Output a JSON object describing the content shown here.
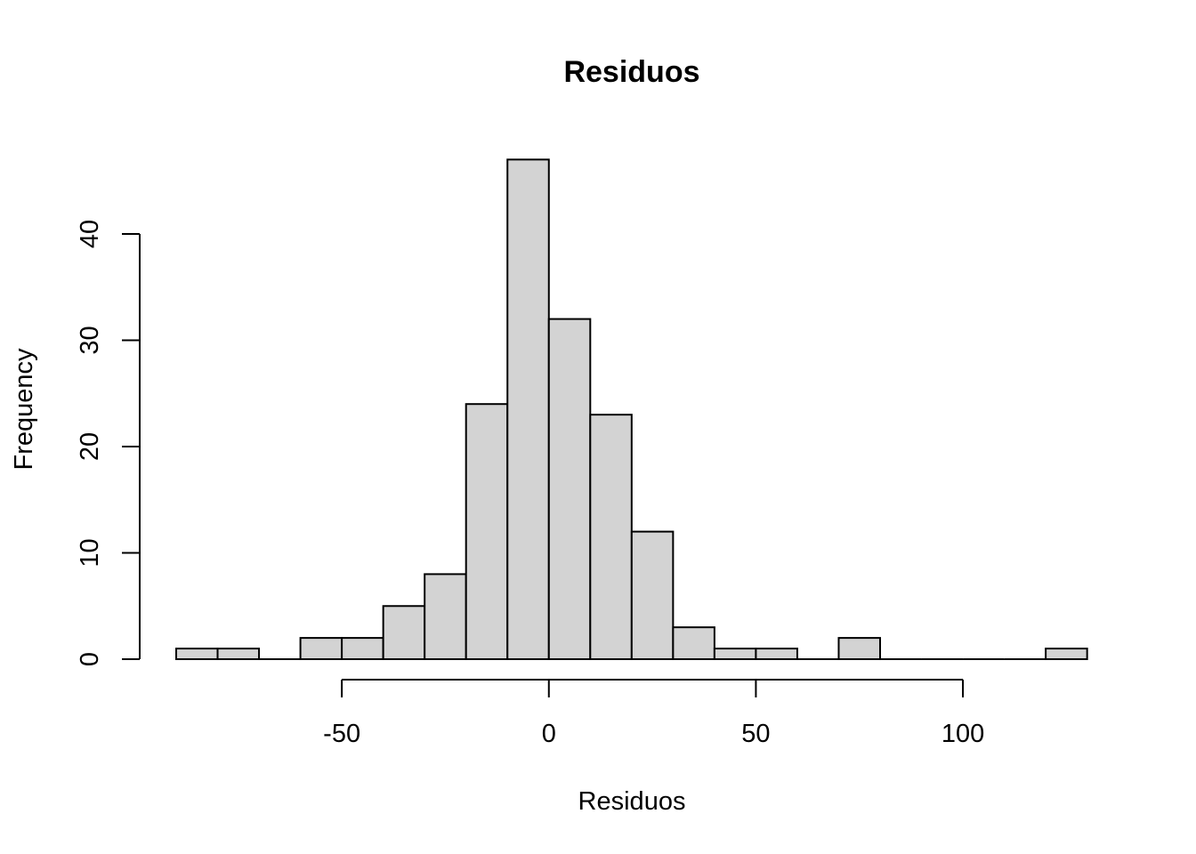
{
  "chart_data": {
    "type": "bar",
    "title": "Residuos",
    "xlabel": "Residuos",
    "ylabel": "Frequency",
    "bin_width": 10,
    "bins": [
      {
        "start": -90,
        "end": -80,
        "count": 1
      },
      {
        "start": -80,
        "end": -70,
        "count": 1
      },
      {
        "start": -70,
        "end": -60,
        "count": 0
      },
      {
        "start": -60,
        "end": -50,
        "count": 2
      },
      {
        "start": -50,
        "end": -40,
        "count": 2
      },
      {
        "start": -40,
        "end": -30,
        "count": 5
      },
      {
        "start": -30,
        "end": -20,
        "count": 8
      },
      {
        "start": -20,
        "end": -10,
        "count": 24
      },
      {
        "start": -10,
        "end": 0,
        "count": 47
      },
      {
        "start": 0,
        "end": 10,
        "count": 32
      },
      {
        "start": 10,
        "end": 20,
        "count": 23
      },
      {
        "start": 20,
        "end": 30,
        "count": 12
      },
      {
        "start": 30,
        "end": 40,
        "count": 3
      },
      {
        "start": 40,
        "end": 50,
        "count": 1
      },
      {
        "start": 50,
        "end": 60,
        "count": 1
      },
      {
        "start": 60,
        "end": 70,
        "count": 0
      },
      {
        "start": 70,
        "end": 80,
        "count": 2
      },
      {
        "start": 80,
        "end": 90,
        "count": 0
      },
      {
        "start": 90,
        "end": 100,
        "count": 0
      },
      {
        "start": 100,
        "end": 110,
        "count": 0
      },
      {
        "start": 110,
        "end": 120,
        "count": 0
      },
      {
        "start": 120,
        "end": 130,
        "count": 1
      }
    ],
    "xticks": [
      -50,
      0,
      50,
      100
    ],
    "xtick_labels": [
      "-50",
      "0",
      "50",
      "100"
    ],
    "yticks": [
      0,
      10,
      20,
      30,
      40
    ],
    "ytick_labels": [
      "0",
      "10",
      "20",
      "30",
      "40"
    ],
    "xlim": [
      -90,
      130
    ],
    "ylim": [
      0,
      47
    ],
    "grid": false,
    "bar_color": "#d3d3d3",
    "edge_color": "#000000"
  }
}
